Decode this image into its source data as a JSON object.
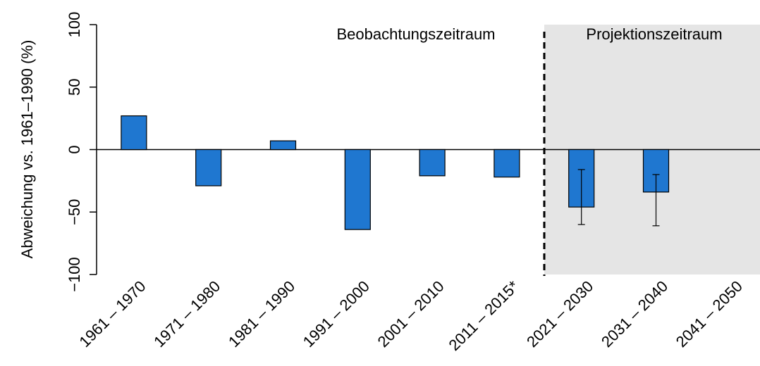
{
  "chart_data": {
    "type": "bar",
    "y_label": "Abweichung vs. 1961–1990 (%)",
    "annotations": [
      "Beobachtungszeitraum",
      "Projektionszeitraum"
    ],
    "categories": [
      "1961 – 1970",
      "1971 – 1980",
      "1981 – 1990",
      "1991 – 2000",
      "2001 – 2010",
      "2011 – 2015*",
      "2021 – 2030",
      "2031 – 2040",
      "2041 – 2050"
    ],
    "values": [
      27,
      -29,
      7,
      -64,
      -21,
      -22,
      -46,
      -34,
      null
    ],
    "error_low": [
      null,
      null,
      null,
      null,
      null,
      null,
      -60,
      -61,
      null
    ],
    "error_high": [
      null,
      null,
      null,
      null,
      null,
      null,
      -16,
      -20,
      null
    ],
    "color": "#1f77d0",
    "ylim": [
      -100,
      100
    ],
    "yticks": [
      {
        "value": -100,
        "label": "−100"
      },
      {
        "value": -50,
        "label": "−50"
      },
      0,
      50,
      100
    ]
  }
}
